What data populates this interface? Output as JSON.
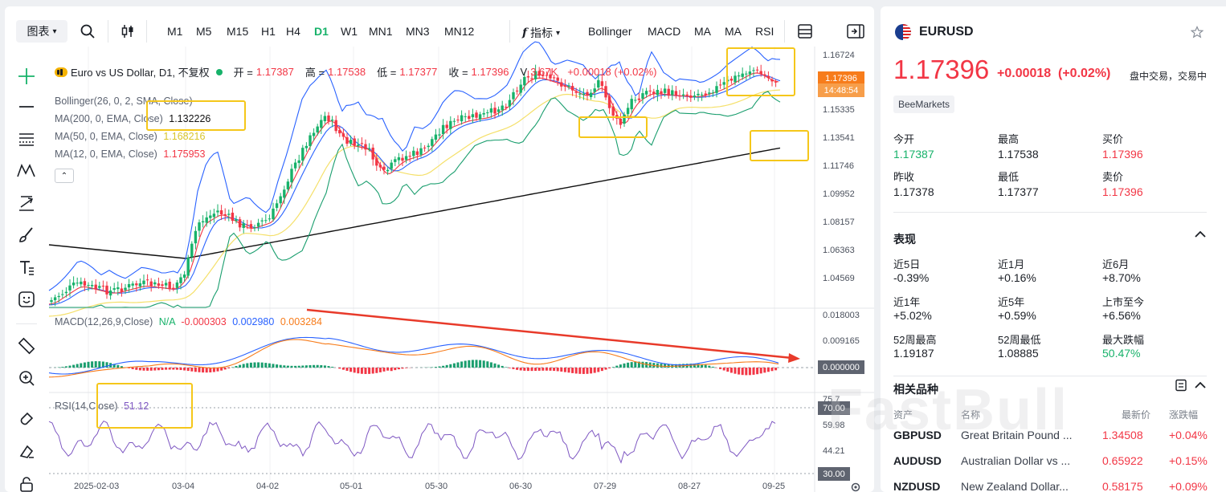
{
  "toolbar": {
    "chart_label": "图表",
    "timeframes": [
      "M1",
      "M5",
      "M15",
      "H1",
      "H4",
      "D1",
      "W1",
      "MN1",
      "MN3",
      "MN12"
    ],
    "active_timeframe": "D1",
    "indicators_label": "指标",
    "indicator_buttons": [
      "Bollinger",
      "MACD",
      "MA",
      "MA",
      "RSI"
    ]
  },
  "legend": {
    "symbol_title": "Euro vs US Dollar, D1, 不复权",
    "open_label": "开 =",
    "open": "1.17387",
    "high_label": "高 =",
    "high": "1.17538",
    "low_label": "低 =",
    "low": "1.17377",
    "close_label": "收 =",
    "close": "1.17396",
    "volume_prefix": "V",
    "volume": "3.67K",
    "change": "+0.00018 (+0.02%)",
    "bollinger": "Bollinger(26, 0, 2, SMA, Close)",
    "ma200_label": "MA(200, 0, EMA, Close)",
    "ma200": "1.132226",
    "ma50_label": "MA(50, 0, EMA, Close)",
    "ma50": "1.168216",
    "ma12_label": "MA(12, 0, EMA, Close)",
    "ma12": "1.175953",
    "macd_label": "MACD(12,26,9,Close)",
    "macd_na": "N/A",
    "macd_v1": "-0.000303",
    "macd_v2": "0.002980",
    "macd_v3": "0.003284",
    "rsi_label": "RSI(14,Close)",
    "rsi": "51.12"
  },
  "price_axis": [
    "1.16724",
    "1.15335",
    "1.13541",
    "1.11746",
    "1.09952",
    "1.08157",
    "1.06363",
    "1.04569"
  ],
  "current_price_tag": "1.17396",
  "countdown_tag": "14:48:54",
  "macd_axis": [
    "0.018003",
    "0.009165"
  ],
  "macd_zero_tag": "0.000000",
  "rsi_axis": [
    "75.7",
    "59.98",
    "44.21"
  ],
  "rsi_tag_high": "70.00",
  "rsi_tag_low": "30.00",
  "date_axis": [
    "2025-02-03",
    "03-04",
    "04-02",
    "05-01",
    "05-30",
    "06-30",
    "07-29",
    "08-27",
    "09-25"
  ],
  "colors": {
    "up": "#17b26a",
    "down": "#f23645",
    "ma12": "#f23645",
    "ma50": "#f5e06a",
    "ma200": "#111111",
    "bb_mid": "#2962ff",
    "bb_band": "#1a9e6e",
    "macd": "#2962ff",
    "signal": "#f77c1b",
    "rsi": "#7e57c2",
    "highlight": "#f5c71a",
    "arrow": "#e83a2a"
  },
  "quote": {
    "symbol": "EURUSD",
    "price": "1.17396",
    "change": "+0.00018",
    "change_pct": "(+0.02%)",
    "session": "盘中交易，交易中",
    "broker": "BeeMarkets",
    "stats": [
      {
        "label": "今开",
        "value": "1.17387",
        "color": "#17b26a"
      },
      {
        "label": "最高",
        "value": "1.17538",
        "color": "#1b1f26"
      },
      {
        "label": "买价",
        "value": "1.17396",
        "color": "#f23645"
      },
      {
        "label": "昨收",
        "value": "1.17378",
        "color": "#1b1f26"
      },
      {
        "label": "最低",
        "value": "1.17377",
        "color": "#1b1f26"
      },
      {
        "label": "卖价",
        "value": "1.17396",
        "color": "#f23645"
      }
    ]
  },
  "performance": {
    "title": "表现",
    "items": [
      {
        "label": "近5日",
        "value": "-0.39%"
      },
      {
        "label": "近1月",
        "value": "+0.16%"
      },
      {
        "label": "近6月",
        "value": "+8.70%"
      },
      {
        "label": "近1年",
        "value": "+5.02%"
      },
      {
        "label": "近5年",
        "value": "+0.59%"
      },
      {
        "label": "上市至今",
        "value": "+6.56%"
      },
      {
        "label": "52周最高",
        "value": "1.19187"
      },
      {
        "label": "52周最低",
        "value": "1.08885"
      },
      {
        "label": "最大跌幅",
        "value": "50.47%"
      }
    ]
  },
  "related": {
    "title": "相关品种",
    "headers": [
      "资产",
      "名称",
      "最新价",
      "涨跌幅"
    ],
    "rows": [
      {
        "symbol": "GBPUSD",
        "name": "Great Britain Pound ...",
        "price": "1.34508",
        "change": "+0.04%"
      },
      {
        "symbol": "AUDUSD",
        "name": "Australian Dollar vs ...",
        "price": "0.65922",
        "change": "+0.15%"
      },
      {
        "symbol": "NZDUSD",
        "name": "New Zealand Dollar...",
        "price": "0.58175",
        "change": "+0.09%"
      }
    ]
  },
  "watermark": "FastBull"
}
